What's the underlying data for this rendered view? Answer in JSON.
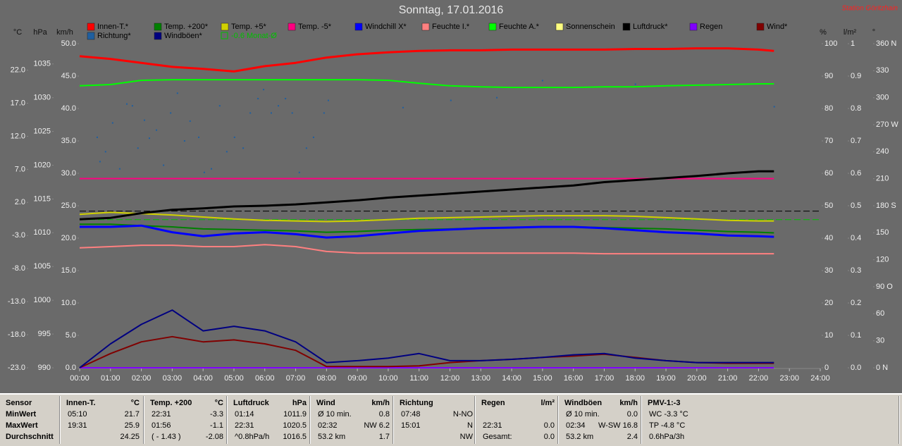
{
  "chart_data": {
    "type": "line",
    "title": "Sonntag, 17.01.2016",
    "station": "Station Göritzhain",
    "x": [
      0,
      1,
      2,
      3,
      4,
      5,
      6,
      7,
      8,
      9,
      10,
      11,
      12,
      13,
      14,
      15,
      16,
      17,
      18,
      19,
      20,
      21,
      22,
      22.5
    ],
    "xlim": [
      0,
      24
    ],
    "xticks": [
      {
        "value": 0,
        "label": "00:00"
      },
      {
        "value": 1,
        "label": "01:00"
      },
      {
        "value": 2,
        "label": "02:00"
      },
      {
        "value": 3,
        "label": "03:00"
      },
      {
        "value": 4,
        "label": "04:00"
      },
      {
        "value": 5,
        "label": "05:00"
      },
      {
        "value": 6,
        "label": "06:00"
      },
      {
        "value": 7,
        "label": "07:00"
      },
      {
        "value": 8,
        "label": "08:00"
      },
      {
        "value": 9,
        "label": "09:00"
      },
      {
        "value": 10,
        "label": "10:00"
      },
      {
        "value": 11,
        "label": "11:00"
      },
      {
        "value": 12,
        "label": "12:00"
      },
      {
        "value": 13,
        "label": "13:00"
      },
      {
        "value": 14,
        "label": "14:00"
      },
      {
        "value": 15,
        "label": "15:00"
      },
      {
        "value": 16,
        "label": "16:00"
      },
      {
        "value": 17,
        "label": "17:00"
      },
      {
        "value": 18,
        "label": "18:00"
      },
      {
        "value": 19,
        "label": "19:00"
      },
      {
        "value": 20,
        "label": "20:00"
      },
      {
        "value": 21,
        "label": "21:00"
      },
      {
        "value": 22,
        "label": "22:00"
      },
      {
        "value": 23,
        "label": "23:00"
      },
      {
        "value": 24,
        "label": "24:00"
      }
    ],
    "grid": false,
    "axes": [
      {
        "label": "°C",
        "side": "left",
        "lim": [
          -23,
          26
        ],
        "ticks": [
          {
            "value": -23,
            "label": "-23.0"
          },
          {
            "value": -18,
            "label": "-18.0"
          },
          {
            "value": -13,
            "label": "-13.0"
          },
          {
            "value": -8,
            "label": "-8.0"
          },
          {
            "value": -3,
            "label": "-3.0"
          },
          {
            "value": 2,
            "label": "2.0"
          },
          {
            "value": 7,
            "label": "7.0"
          },
          {
            "value": 12,
            "label": "12.0"
          },
          {
            "value": 17,
            "label": "17.0"
          },
          {
            "value": 22,
            "label": "22.0"
          }
        ]
      },
      {
        "label": "hPa",
        "side": "left",
        "lim": [
          990,
          1038
        ],
        "ticks": [
          990,
          995,
          1000,
          1005,
          1010,
          1015,
          1020,
          1025,
          1030,
          1035
        ]
      },
      {
        "label": "km/h",
        "side": "left",
        "lim": [
          0,
          50
        ],
        "ticks": [
          {
            "value": 0,
            "label": "0.0"
          },
          {
            "value": 5,
            "label": "5.0"
          },
          {
            "value": 10,
            "label": "10.0"
          },
          {
            "value": 15,
            "label": "15.0"
          },
          {
            "value": 20,
            "label": "20.0"
          },
          {
            "value": 25,
            "label": "25.0"
          },
          {
            "value": 30,
            "label": "30.0"
          },
          {
            "value": 35,
            "label": "35.0"
          },
          {
            "value": 40,
            "label": "40.0"
          },
          {
            "value": 45,
            "label": "45.0"
          },
          {
            "value": 50,
            "label": "50.0"
          }
        ]
      },
      {
        "label": "%",
        "side": "right",
        "lim": [
          0,
          100
        ],
        "ticks": [
          0,
          10,
          20,
          30,
          40,
          50,
          60,
          70,
          80,
          90,
          100
        ]
      },
      {
        "label": "l/m²",
        "side": "right",
        "lim": [
          0,
          1
        ],
        "ticks": [
          {
            "value": 0,
            "label": "0.0"
          },
          0.1,
          0.2,
          0.3,
          0.4,
          0.5,
          0.6,
          0.7,
          0.8,
          0.9,
          1
        ]
      },
      {
        "label": "°",
        "side": "right",
        "lim": [
          0,
          360
        ],
        "ticks": [
          {
            "value": 0,
            "label": "0 N"
          },
          30,
          60,
          {
            "value": 90,
            "label": "90 O"
          },
          120,
          150,
          {
            "value": 180,
            "label": "180 S"
          },
          210,
          240,
          {
            "value": 270,
            "label": "270 W"
          },
          300,
          330,
          {
            "value": 360,
            "label": "360 N"
          }
        ]
      }
    ],
    "series": [
      {
        "name": "Innen-T.*",
        "color": "#ff0000",
        "axis": 0,
        "width": 3,
        "values": [
          24.1,
          23.7,
          23.1,
          22.5,
          22.2,
          21.8,
          22.6,
          23.1,
          23.9,
          24.4,
          24.7,
          24.9,
          25.0,
          25.0,
          25.1,
          25.1,
          25.1,
          25.1,
          25.2,
          25.2,
          25.3,
          25.3,
          25.1,
          24.9
        ]
      },
      {
        "name": "Temp. +200*",
        "color": "#008000",
        "axis": 0,
        "width": 2,
        "values": [
          -1.3,
          -1.3,
          -1.5,
          -1.7,
          -2.0,
          -2.1,
          -2.2,
          -2.3,
          -2.5,
          -2.4,
          -2.2,
          -2.1,
          -2.0,
          -1.9,
          -1.8,
          -1.7,
          -1.7,
          -1.8,
          -1.9,
          -2.0,
          -2.2,
          -2.4,
          -2.5,
          -2.6
        ]
      },
      {
        "name": "Temp. +5*",
        "color": "#d0d000",
        "axis": 0,
        "width": 2,
        "values": [
          0.2,
          0.5,
          0.3,
          0.1,
          -0.2,
          -0.5,
          -0.7,
          -0.8,
          -0.9,
          -0.8,
          -0.6,
          -0.4,
          -0.3,
          -0.2,
          -0.1,
          0.0,
          0.0,
          0.0,
          -0.1,
          -0.3,
          -0.5,
          -0.7,
          -0.8,
          -0.8
        ]
      },
      {
        "name": "Temp. -5*",
        "color": "#ff0080",
        "axis": 0,
        "width": 2,
        "values": [
          5.6,
          5.6,
          5.6,
          5.6,
          5.6,
          5.6,
          5.6,
          5.6,
          5.6,
          5.6,
          5.6,
          5.6,
          5.6,
          5.6,
          5.6,
          5.6,
          5.6,
          5.6,
          5.6,
          5.6,
          5.6,
          5.6,
          5.6,
          5.6
        ]
      },
      {
        "name": "Windchill X*",
        "color": "#0000ff",
        "axis": 0,
        "width": 3,
        "values": [
          -1.7,
          -1.7,
          -1.5,
          -2.5,
          -3.1,
          -2.7,
          -2.5,
          -2.8,
          -3.3,
          -3.1,
          -2.7,
          -2.3,
          -2.1,
          -1.9,
          -1.8,
          -1.7,
          -1.7,
          -1.9,
          -2.2,
          -2.5,
          -2.7,
          -3.0,
          -3.1,
          -3.2
        ]
      },
      {
        "name": "Feuchte I.*",
        "color": "#ff8080",
        "axis": 3,
        "width": 2,
        "values": [
          37.0,
          37.4,
          37.8,
          37.8,
          37.4,
          37.4,
          38.0,
          37.4,
          35.9,
          35.4,
          35.4,
          35.4,
          35.4,
          35.4,
          35.4,
          35.4,
          35.4,
          35.2,
          35.2,
          35.2,
          35.2,
          35.2,
          35.2,
          35.2
        ]
      },
      {
        "name": "Feuchte A.*",
        "color": "#00ff00",
        "axis": 3,
        "width": 2,
        "values": [
          87.0,
          87.4,
          88.7,
          88.9,
          88.9,
          88.9,
          88.9,
          88.9,
          88.9,
          88.9,
          88.7,
          87.8,
          87.0,
          86.7,
          86.5,
          86.5,
          86.5,
          86.7,
          86.7,
          87.0,
          87.2,
          87.4,
          87.6,
          87.6
        ]
      },
      {
        "name": "Sonnenschein",
        "color": "#ffff80",
        "axis": 3,
        "width": 2,
        "values": [
          0,
          0,
          0,
          0,
          0,
          0,
          0,
          0,
          0,
          0,
          0,
          0,
          0,
          0,
          0,
          0,
          0,
          0,
          0,
          0,
          0,
          0,
          0,
          0
        ]
      },
      {
        "name": "Luftdruck*",
        "color": "#000000",
        "axis": 1,
        "width": 3,
        "values": [
          1012.0,
          1012.2,
          1012.9,
          1013.4,
          1013.6,
          1013.9,
          1014.0,
          1014.2,
          1014.5,
          1014.8,
          1015.2,
          1015.5,
          1015.8,
          1016.1,
          1016.4,
          1016.7,
          1017.0,
          1017.5,
          1017.8,
          1018.1,
          1018.4,
          1018.8,
          1019.1,
          1019.1
        ]
      },
      {
        "name": "Regen",
        "color": "#8000ff",
        "axis": 4,
        "width": 2,
        "values": [
          0,
          0,
          0,
          0,
          0,
          0,
          0,
          0,
          0,
          0,
          0,
          0,
          0,
          0,
          0,
          0,
          0,
          0,
          0,
          0,
          0,
          0,
          0,
          0
        ]
      },
      {
        "name": "Wind*",
        "color": "#800000",
        "axis": 2,
        "width": 2,
        "values": [
          0,
          2.2,
          4.0,
          4.8,
          4.0,
          4.3,
          3.7,
          2.7,
          0.2,
          0.2,
          0.2,
          0.3,
          0.8,
          1.1,
          1.3,
          1.6,
          1.8,
          2.1,
          1.6,
          1.1,
          0.8,
          0.7,
          0.7,
          0.7
        ]
      },
      {
        "name": "Richtung*",
        "color": "#1f5fa0",
        "axis": 5,
        "type": "scatter",
        "x": [
          0.57,
          0.66,
          0.84,
          1.07,
          1.3,
          1.53,
          1.71,
          1.89,
          2.1,
          2.26,
          2.49,
          2.72,
          2.95,
          3.17,
          3.4,
          3.58,
          3.86,
          4.04,
          4.27,
          4.54,
          4.77,
          5.02,
          5.3,
          5.53,
          5.78,
          5.96,
          6.21,
          6.44,
          6.67,
          6.89,
          7.12,
          7.35,
          7.58,
          7.92,
          8.06,
          10.48,
          12.03,
          13.52,
          15.0,
          18.01,
          22.51
        ],
        "values": [
          256,
          229,
          240,
          272,
          221,
          293,
          291,
          244,
          275,
          255,
          264,
          225,
          283,
          305,
          252,
          274,
          256,
          217,
          221,
          291,
          240,
          256,
          244,
          283,
          299,
          309,
          283,
          291,
          299,
          283,
          217,
          244,
          256,
          283,
          297,
          289,
          297,
          300,
          319,
          315,
          290
        ]
      },
      {
        "name": "Windböen*",
        "color": "#000080",
        "axis": 2,
        "width": 2,
        "values": [
          0,
          3.7,
          6.7,
          8.9,
          5.7,
          6.4,
          5.7,
          4.0,
          0.8,
          1.1,
          1.5,
          2.2,
          1.1,
          1.1,
          1.3,
          1.6,
          2.0,
          2.2,
          1.5,
          1.1,
          0.8,
          0.8,
          0.8,
          0.8
        ]
      }
    ],
    "reference_lines": [
      {
        "name": "-0.6 Monat-Ø",
        "value": -0.6,
        "axis": 0,
        "color": "#00c000"
      },
      {
        "value": 1013.2,
        "axis": 1,
        "color": "#000000"
      }
    ]
  },
  "stats": {
    "row_labels": [
      "Sensor",
      "MinWert",
      "MaxWert",
      "Durchschnitt"
    ],
    "groups": [
      {
        "header": "Innen-T.",
        "unit": "°C",
        "rows": [
          [
            "05:10",
            "21.7"
          ],
          [
            "19:31",
            "25.9"
          ],
          [
            "24.25"
          ]
        ]
      },
      {
        "header": "Temp. +200",
        "unit": "°C",
        "rows": [
          [
            "22:31",
            "-3.3"
          ],
          [
            "01:56",
            "-1.1"
          ],
          [
            "( - 1.43 )",
            "-2.08"
          ]
        ]
      },
      {
        "header": "Luftdruck",
        "unit": "hPa",
        "rows": [
          [
            "01:14",
            "1011.9"
          ],
          [
            "22:31",
            "1020.5"
          ],
          [
            "^0.8hPa/h",
            "1016.5"
          ]
        ]
      },
      {
        "header": "Wind",
        "unit": "km/h",
        "rows": [
          [
            "Ø 10 min.",
            "0.8"
          ],
          [
            "02:32",
            "NW 6.2"
          ],
          [
            "53.2 km",
            "1.7"
          ]
        ]
      },
      {
        "header": "Richtung",
        "rows": [
          [
            "07:48",
            "N-NO"
          ],
          [
            "15:01",
            "N"
          ],
          [
            "NW"
          ]
        ]
      },
      {
        "header": "Regen",
        "unit": "l/m²",
        "rows": [
          [],
          [
            "22:31",
            "0.0"
          ],
          [
            "Gesamt:",
            "0.0"
          ]
        ]
      },
      {
        "header": "Windböen",
        "unit": "km/h",
        "rows": [
          [
            "Ø 10 min.",
            "0.0"
          ],
          [
            "02:34",
            "W-SW 16.8"
          ],
          [
            "53.2 km",
            "2.4"
          ]
        ]
      },
      {
        "header": "PMV-1:-3",
        "align": "left",
        "rows": [
          [
            "WC -3.3 °C"
          ],
          [
            "TP -4.8 °C"
          ],
          [
            "0.6hPa/3h"
          ]
        ]
      }
    ]
  }
}
